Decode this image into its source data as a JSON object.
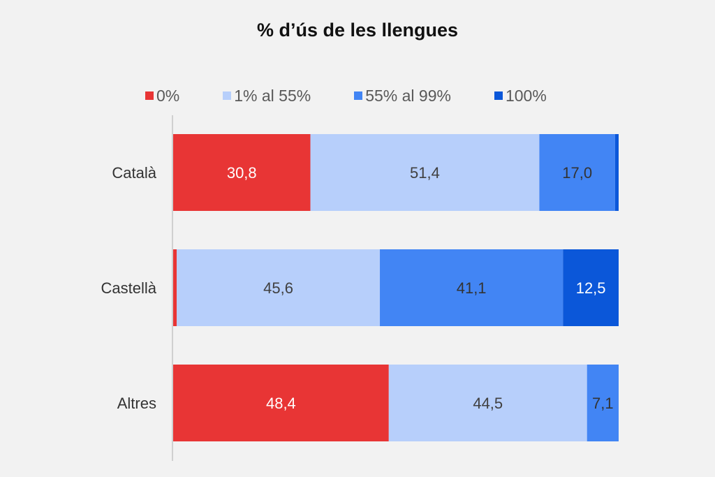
{
  "chart_data": {
    "type": "bar",
    "orientation": "horizontal",
    "stacked": true,
    "title": "% d’ús de les llengues",
    "xlabel": "",
    "ylabel": "",
    "xlim": [
      0,
      100
    ],
    "grid": false,
    "legend_position": "top",
    "categories": [
      "Català",
      "Castellà",
      "Altres"
    ],
    "series": [
      {
        "name": "0%",
        "color": "#e83535",
        "values": [
          30.8,
          0.8,
          48.4
        ],
        "labels": [
          "30,8",
          "",
          "48,4"
        ],
        "label_color": "#ffffff"
      },
      {
        "name": "1% al 55%",
        "color": "#b7cffb",
        "values": [
          51.4,
          45.6,
          44.5
        ],
        "labels": [
          "51,4",
          "45,6",
          "44,5"
        ],
        "label_color": "#404040"
      },
      {
        "name": "55% al 99%",
        "color": "#4285f4",
        "values": [
          17.0,
          41.1,
          7.1
        ],
        "labels": [
          "17,0",
          "41,1",
          "7,1"
        ],
        "label_color": "#333333"
      },
      {
        "name": "100%",
        "color": "#0b57d9",
        "values": [
          0.8,
          12.5,
          0
        ],
        "labels": [
          "",
          "12,5",
          ""
        ],
        "label_color": "#ffffff"
      }
    ]
  }
}
